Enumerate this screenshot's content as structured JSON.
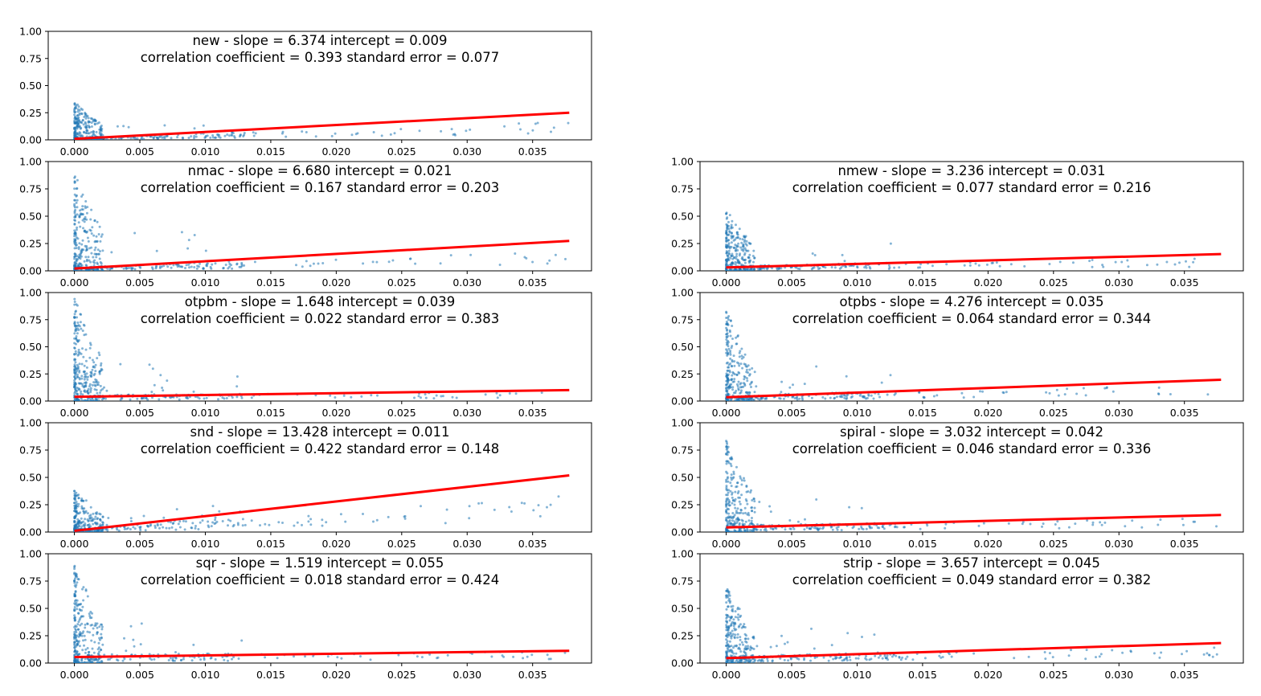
{
  "figure": {
    "xticks": [
      "0.000",
      "0.005",
      "0.010",
      "0.015",
      "0.020",
      "0.025",
      "0.030",
      "0.035"
    ],
    "yticks": [
      "0.00",
      "0.25",
      "0.50",
      "0.75",
      "1.00"
    ]
  },
  "chart_data": [
    {
      "type": "scatter",
      "title_line1": "new - slope = 6.374 intercept = 0.009",
      "title_line2": "correlation coefficient = 0.393 standard error = 0.077",
      "slope": 6.374,
      "intercept": 0.009,
      "correlation_coefficient": 0.393,
      "standard_error": 0.077,
      "xlim": [
        -0.002,
        0.0395
      ],
      "ylim": [
        0,
        1
      ],
      "x_max": 0.0378,
      "cluster_y_max": 0.35,
      "series": [
        {
          "name": "",
          "color": "#1f77b4"
        }
      ],
      "fit_color": "#ff0000"
    },
    {
      "type": "scatter",
      "title_line1": "nmac - slope = 6.680 intercept = 0.021",
      "title_line2": "correlation coefficient = 0.167 standard error = 0.203",
      "slope": 6.68,
      "intercept": 0.021,
      "correlation_coefficient": 0.167,
      "standard_error": 0.203,
      "xlim": [
        -0.002,
        0.0395
      ],
      "ylim": [
        0,
        1
      ],
      "x_max": 0.0378,
      "cluster_y_max": 0.9,
      "series": [
        {
          "name": "",
          "color": "#1f77b4"
        }
      ],
      "fit_color": "#ff0000"
    },
    {
      "type": "scatter",
      "title_line1": "nmew - slope = 3.236 intercept = 0.031",
      "title_line2": "correlation coefficient = 0.077 standard error = 0.216",
      "slope": 3.236,
      "intercept": 0.031,
      "correlation_coefficient": 0.077,
      "standard_error": 0.216,
      "xlim": [
        -0.002,
        0.0395
      ],
      "ylim": [
        0,
        1
      ],
      "x_max": 0.0378,
      "cluster_y_max": 0.56,
      "series": [
        {
          "name": "",
          "color": "#1f77b4"
        }
      ],
      "fit_color": "#ff0000"
    },
    {
      "type": "scatter",
      "title_line1": "otpbm - slope = 1.648 intercept = 0.039",
      "title_line2": "correlation coefficient = 0.022 standard error = 0.383",
      "slope": 1.648,
      "intercept": 0.039,
      "correlation_coefficient": 0.022,
      "standard_error": 0.383,
      "xlim": [
        -0.002,
        0.0395
      ],
      "ylim": [
        0,
        1
      ],
      "x_max": 0.0378,
      "cluster_y_max": 0.97,
      "series": [
        {
          "name": "",
          "color": "#1f77b4"
        }
      ],
      "fit_color": "#ff0000"
    },
    {
      "type": "scatter",
      "title_line1": "otpbs - slope = 4.276 intercept = 0.035",
      "title_line2": "correlation coefficient = 0.064 standard error = 0.344",
      "slope": 4.276,
      "intercept": 0.035,
      "correlation_coefficient": 0.064,
      "standard_error": 0.344,
      "xlim": [
        -0.002,
        0.0395
      ],
      "ylim": [
        0,
        1
      ],
      "x_max": 0.0378,
      "cluster_y_max": 0.83,
      "series": [
        {
          "name": "",
          "color": "#1f77b4"
        }
      ],
      "fit_color": "#ff0000"
    },
    {
      "type": "scatter",
      "title_line1": "snd - slope = 13.428 intercept = 0.011",
      "title_line2": "correlation coefficient = 0.422 standard error = 0.148",
      "slope": 13.428,
      "intercept": 0.011,
      "correlation_coefficient": 0.422,
      "standard_error": 0.148,
      "xlim": [
        -0.002,
        0.0395
      ],
      "ylim": [
        0,
        1
      ],
      "x_max": 0.0378,
      "cluster_y_max": 0.39,
      "series": [
        {
          "name": "",
          "color": "#1f77b4"
        }
      ],
      "fit_color": "#ff0000"
    },
    {
      "type": "scatter",
      "title_line1": "spiral - slope = 3.032 intercept = 0.042",
      "title_line2": "correlation coefficient = 0.046 standard error = 0.336",
      "slope": 3.032,
      "intercept": 0.042,
      "correlation_coefficient": 0.046,
      "standard_error": 0.336,
      "xlim": [
        -0.002,
        0.0395
      ],
      "ylim": [
        0,
        1
      ],
      "x_max": 0.0378,
      "cluster_y_max": 0.84,
      "series": [
        {
          "name": "",
          "color": "#1f77b4"
        }
      ],
      "fit_color": "#ff0000"
    },
    {
      "type": "scatter",
      "title_line1": "sqr - slope = 1.519 intercept = 0.055",
      "title_line2": "correlation coefficient = 0.018 standard error = 0.424",
      "slope": 1.519,
      "intercept": 0.055,
      "correlation_coefficient": 0.018,
      "standard_error": 0.424,
      "xlim": [
        -0.002,
        0.0395
      ],
      "ylim": [
        0,
        1
      ],
      "x_max": 0.0378,
      "cluster_y_max": 0.9,
      "series": [
        {
          "name": "",
          "color": "#1f77b4"
        }
      ],
      "fit_color": "#ff0000"
    },
    {
      "type": "scatter",
      "title_line1": "strip - slope = 3.657 intercept = 0.045",
      "title_line2": "correlation coefficient = 0.049 standard error = 0.382",
      "slope": 3.657,
      "intercept": 0.045,
      "correlation_coefficient": 0.049,
      "standard_error": 0.382,
      "xlim": [
        -0.002,
        0.0395
      ],
      "ylim": [
        0,
        1
      ],
      "x_max": 0.0378,
      "cluster_y_max": 0.7,
      "series": [
        {
          "name": "",
          "color": "#1f77b4"
        }
      ],
      "fit_color": "#ff0000"
    }
  ]
}
